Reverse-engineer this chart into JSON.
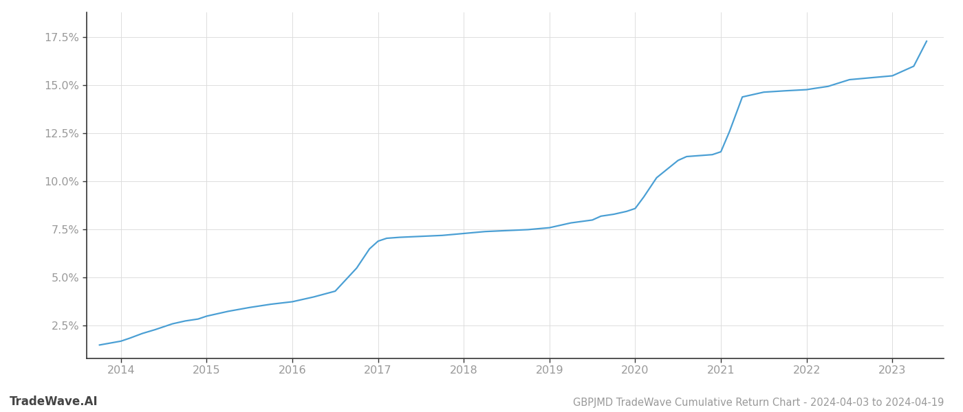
{
  "title": "GBPJMD TradeWave Cumulative Return Chart - 2024-04-03 to 2024-04-19",
  "watermark": "TradeWave.AI",
  "line_color": "#4a9fd4",
  "background_color": "#ffffff",
  "grid_color": "#cccccc",
  "x_values": [
    2013.75,
    2014.0,
    2014.1,
    2014.25,
    2014.4,
    2014.6,
    2014.75,
    2014.9,
    2015.0,
    2015.1,
    2015.25,
    2015.5,
    2015.75,
    2016.0,
    2016.1,
    2016.25,
    2016.5,
    2016.75,
    2016.9,
    2017.0,
    2017.1,
    2017.25,
    2017.5,
    2017.75,
    2018.0,
    2018.25,
    2018.5,
    2018.75,
    2019.0,
    2019.1,
    2019.25,
    2019.5,
    2019.6,
    2019.75,
    2019.9,
    2020.0,
    2020.1,
    2020.25,
    2020.5,
    2020.6,
    2020.75,
    2020.9,
    2021.0,
    2021.1,
    2021.25,
    2021.5,
    2021.75,
    2022.0,
    2022.1,
    2022.25,
    2022.5,
    2022.75,
    2023.0,
    2023.25,
    2023.4
  ],
  "y_values": [
    1.5,
    1.7,
    1.85,
    2.1,
    2.3,
    2.6,
    2.75,
    2.85,
    3.0,
    3.1,
    3.25,
    3.45,
    3.62,
    3.75,
    3.85,
    4.0,
    4.3,
    5.5,
    6.5,
    6.9,
    7.05,
    7.1,
    7.15,
    7.2,
    7.3,
    7.4,
    7.45,
    7.5,
    7.6,
    7.7,
    7.85,
    8.0,
    8.2,
    8.3,
    8.45,
    8.6,
    9.2,
    10.2,
    11.1,
    11.3,
    11.35,
    11.4,
    11.55,
    12.6,
    14.4,
    14.65,
    14.72,
    14.78,
    14.85,
    14.95,
    15.3,
    15.4,
    15.5,
    16.0,
    17.3
  ],
  "xlim": [
    2013.6,
    2023.6
  ],
  "ylim": [
    0.8,
    18.8
  ],
  "yticks": [
    2.5,
    5.0,
    7.5,
    10.0,
    12.5,
    15.0,
    17.5
  ],
  "xticks": [
    2014,
    2015,
    2016,
    2017,
    2018,
    2019,
    2020,
    2021,
    2022,
    2023
  ],
  "tick_label_color": "#999999",
  "spine_color": "#333333",
  "grid_color_light": "#dddddd",
  "line_width": 1.6,
  "title_fontsize": 10.5,
  "watermark_fontsize": 12,
  "tick_fontsize": 11.5
}
